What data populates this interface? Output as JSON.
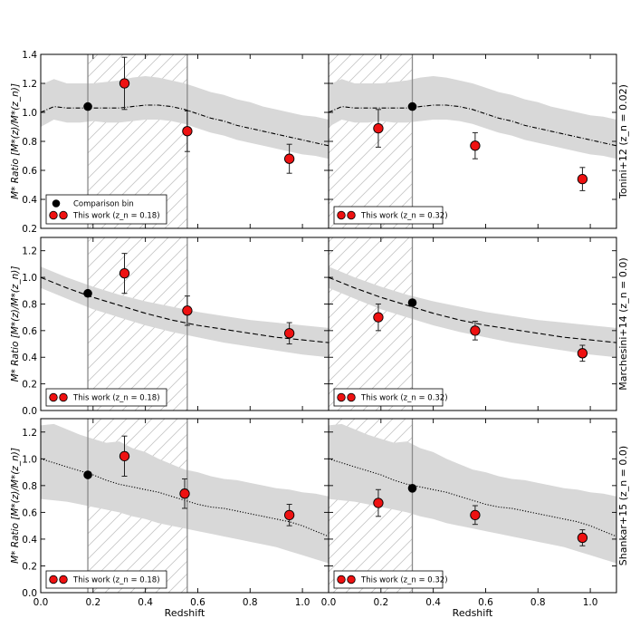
{
  "chart_data": {
    "type": "scatter",
    "layout": "3 rows x 2 columns, shared x axis per column, shared y label per row",
    "xlabel": "Redshift",
    "xlim": [
      0.0,
      1.1
    ],
    "xticks": [
      0.0,
      0.2,
      0.4,
      0.6,
      0.8,
      1.0
    ],
    "xticklabels": [
      "0.0",
      "0.2",
      "0.4",
      "0.6",
      "0.8",
      "1.0"
    ],
    "rows": [
      {
        "ylabel": "M* Ratio [M*(z)/M*(z_n)]",
        "right_label": "Tonini+12 (z_n = 0.02)",
        "ylim": [
          0.2,
          1.4
        ],
        "yticks": [
          0.2,
          0.4,
          0.6,
          0.8,
          1.0,
          1.2,
          1.4
        ],
        "yticklabels": [
          "0.2",
          "0.4",
          "0.6",
          "0.8",
          "1.0",
          "1.2",
          "1.4"
        ],
        "model_linestyle": "dashdot",
        "band_x": [
          0.0,
          0.05,
          0.1,
          0.15,
          0.2,
          0.25,
          0.3,
          0.35,
          0.4,
          0.45,
          0.5,
          0.55,
          0.6,
          0.65,
          0.7,
          0.75,
          0.8,
          0.85,
          0.9,
          0.95,
          1.0,
          1.05,
          1.1
        ],
        "band_lo": [
          0.9,
          0.95,
          0.93,
          0.93,
          0.94,
          0.93,
          0.93,
          0.94,
          0.95,
          0.95,
          0.94,
          0.92,
          0.89,
          0.86,
          0.84,
          0.81,
          0.79,
          0.77,
          0.75,
          0.73,
          0.71,
          0.7,
          0.68
        ],
        "band_hi": [
          1.19,
          1.23,
          1.2,
          1.2,
          1.2,
          1.21,
          1.22,
          1.24,
          1.25,
          1.24,
          1.22,
          1.2,
          1.17,
          1.14,
          1.12,
          1.09,
          1.07,
          1.04,
          1.02,
          1.0,
          0.98,
          0.97,
          0.95
        ],
        "model_x": [
          0.0,
          0.05,
          0.1,
          0.15,
          0.2,
          0.25,
          0.3,
          0.35,
          0.4,
          0.45,
          0.5,
          0.55,
          0.6,
          0.65,
          0.7,
          0.75,
          0.8,
          0.85,
          0.9,
          0.95,
          1.0,
          1.05,
          1.1
        ],
        "model_y": [
          1.0,
          1.04,
          1.03,
          1.03,
          1.03,
          1.03,
          1.03,
          1.04,
          1.05,
          1.05,
          1.04,
          1.02,
          0.99,
          0.96,
          0.94,
          0.91,
          0.89,
          0.87,
          0.85,
          0.83,
          0.81,
          0.79,
          0.77
        ],
        "legend_left": [
          "Comparison bin",
          "This work (z_n = 0.18)"
        ],
        "legend_right": [
          "This work (z_n = 0.32)"
        ],
        "panels": [
          {
            "column": "left",
            "shaded_redshift_range": [
              0.18,
              0.56
            ],
            "comparison_bin": {
              "x": 0.18,
              "y": 1.04
            },
            "points": [
              {
                "x": 0.32,
                "y": 1.2,
                "err": 0.18
              },
              {
                "x": 0.56,
                "y": 0.87,
                "err": 0.14
              },
              {
                "x": 0.95,
                "y": 0.68,
                "err": 0.1
              }
            ]
          },
          {
            "column": "right",
            "shaded_redshift_range": [
              0.0,
              0.32
            ],
            "comparison_bin": {
              "x": 0.32,
              "y": 1.04
            },
            "points": [
              {
                "x": 0.19,
                "y": 0.89,
                "err": 0.13
              },
              {
                "x": 0.56,
                "y": 0.77,
                "err": 0.09
              },
              {
                "x": 0.97,
                "y": 0.54,
                "err": 0.08
              }
            ]
          }
        ]
      },
      {
        "ylabel": "M* Ratio [M*(z)/M*(z_n)]",
        "right_label": "Marchesini+14 (z_n = 0.0)",
        "ylim": [
          0.0,
          1.3
        ],
        "yticks": [
          0.0,
          0.2,
          0.4,
          0.6,
          0.8,
          1.0,
          1.2
        ],
        "yticklabels": [
          "0.0",
          "0.2",
          "0.4",
          "0.6",
          "0.8",
          "1.0",
          "1.2"
        ],
        "model_linestyle": "dashed",
        "band_x": [
          0.0,
          0.1,
          0.2,
          0.3,
          0.4,
          0.5,
          0.6,
          0.7,
          0.8,
          0.9,
          1.0,
          1.1
        ],
        "band_lo": [
          0.92,
          0.84,
          0.76,
          0.7,
          0.64,
          0.59,
          0.55,
          0.51,
          0.48,
          0.45,
          0.42,
          0.4
        ],
        "band_hi": [
          1.08,
          1.0,
          0.93,
          0.87,
          0.82,
          0.78,
          0.74,
          0.71,
          0.68,
          0.66,
          0.64,
          0.62
        ],
        "model_x": [
          0.0,
          0.1,
          0.2,
          0.3,
          0.4,
          0.5,
          0.6,
          0.7,
          0.8,
          0.9,
          1.0,
          1.1
        ],
        "model_y": [
          1.0,
          0.92,
          0.85,
          0.79,
          0.73,
          0.68,
          0.64,
          0.61,
          0.58,
          0.55,
          0.53,
          0.51
        ],
        "legend_left": [
          "This work (z_n = 0.18)"
        ],
        "legend_right": [
          "This work (z_n = 0.32)"
        ],
        "panels": [
          {
            "column": "left",
            "shaded_redshift_range": [
              0.18,
              0.56
            ],
            "comparison_bin": {
              "x": 0.18,
              "y": 0.88
            },
            "points": [
              {
                "x": 0.32,
                "y": 1.03,
                "err": 0.15
              },
              {
                "x": 0.56,
                "y": 0.75,
                "err": 0.11
              },
              {
                "x": 0.95,
                "y": 0.58,
                "err": 0.08
              }
            ]
          },
          {
            "column": "right",
            "shaded_redshift_range": [
              0.0,
              0.32
            ],
            "comparison_bin": {
              "x": 0.32,
              "y": 0.81
            },
            "points": [
              {
                "x": 0.19,
                "y": 0.7,
                "err": 0.1
              },
              {
                "x": 0.56,
                "y": 0.6,
                "err": 0.07
              },
              {
                "x": 0.97,
                "y": 0.43,
                "err": 0.06
              }
            ]
          }
        ]
      },
      {
        "ylabel": "M* Ratio [M*(z)/M*(z_n)]",
        "right_label": "Shankar+15 (z_n = 0.0)",
        "ylim": [
          0.0,
          1.3
        ],
        "yticks": [
          0.0,
          0.2,
          0.4,
          0.6,
          0.8,
          1.0,
          1.2
        ],
        "yticklabels": [
          "0.0",
          "0.2",
          "0.4",
          "0.6",
          "0.8",
          "1.0",
          "1.2"
        ],
        "model_linestyle": "dotted",
        "band_x": [
          0.0,
          0.05,
          0.1,
          0.15,
          0.2,
          0.25,
          0.3,
          0.35,
          0.4,
          0.45,
          0.5,
          0.55,
          0.6,
          0.65,
          0.7,
          0.75,
          0.8,
          0.85,
          0.9,
          0.95,
          1.0,
          1.05,
          1.1
        ],
        "band_lo": [
          0.7,
          0.69,
          0.68,
          0.66,
          0.64,
          0.62,
          0.6,
          0.57,
          0.55,
          0.52,
          0.5,
          0.48,
          0.46,
          0.44,
          0.42,
          0.4,
          0.38,
          0.36,
          0.34,
          0.31,
          0.28,
          0.25,
          0.22
        ],
        "band_hi": [
          1.25,
          1.26,
          1.22,
          1.18,
          1.15,
          1.12,
          1.13,
          1.08,
          1.05,
          1.0,
          0.96,
          0.92,
          0.9,
          0.87,
          0.85,
          0.84,
          0.82,
          0.8,
          0.78,
          0.77,
          0.75,
          0.74,
          0.72
        ],
        "model_x": [
          0.0,
          0.05,
          0.1,
          0.15,
          0.2,
          0.25,
          0.3,
          0.35,
          0.4,
          0.45,
          0.5,
          0.55,
          0.6,
          0.65,
          0.7,
          0.75,
          0.8,
          0.85,
          0.9,
          0.95,
          1.0,
          1.05,
          1.1
        ],
        "model_y": [
          1.0,
          0.97,
          0.94,
          0.91,
          0.88,
          0.84,
          0.81,
          0.79,
          0.77,
          0.75,
          0.72,
          0.69,
          0.66,
          0.64,
          0.63,
          0.61,
          0.59,
          0.57,
          0.55,
          0.53,
          0.5,
          0.46,
          0.42
        ],
        "legend_left": [
          "This work (z_n = 0.18)"
        ],
        "legend_right": [
          "This work (z_n = 0.32)"
        ],
        "panels": [
          {
            "column": "left",
            "shaded_redshift_range": [
              0.18,
              0.56
            ],
            "comparison_bin": {
              "x": 0.18,
              "y": 0.88
            },
            "points": [
              {
                "x": 0.32,
                "y": 1.02,
                "err": 0.15
              },
              {
                "x": 0.55,
                "y": 0.74,
                "err": 0.11
              },
              {
                "x": 0.95,
                "y": 0.58,
                "err": 0.08
              }
            ]
          },
          {
            "column": "right",
            "shaded_redshift_range": [
              0.0,
              0.32
            ],
            "comparison_bin": {
              "x": 0.32,
              "y": 0.78
            },
            "points": [
              {
                "x": 0.19,
                "y": 0.67,
                "err": 0.1
              },
              {
                "x": 0.56,
                "y": 0.58,
                "err": 0.07
              },
              {
                "x": 0.97,
                "y": 0.41,
                "err": 0.06
              }
            ]
          }
        ]
      }
    ]
  }
}
